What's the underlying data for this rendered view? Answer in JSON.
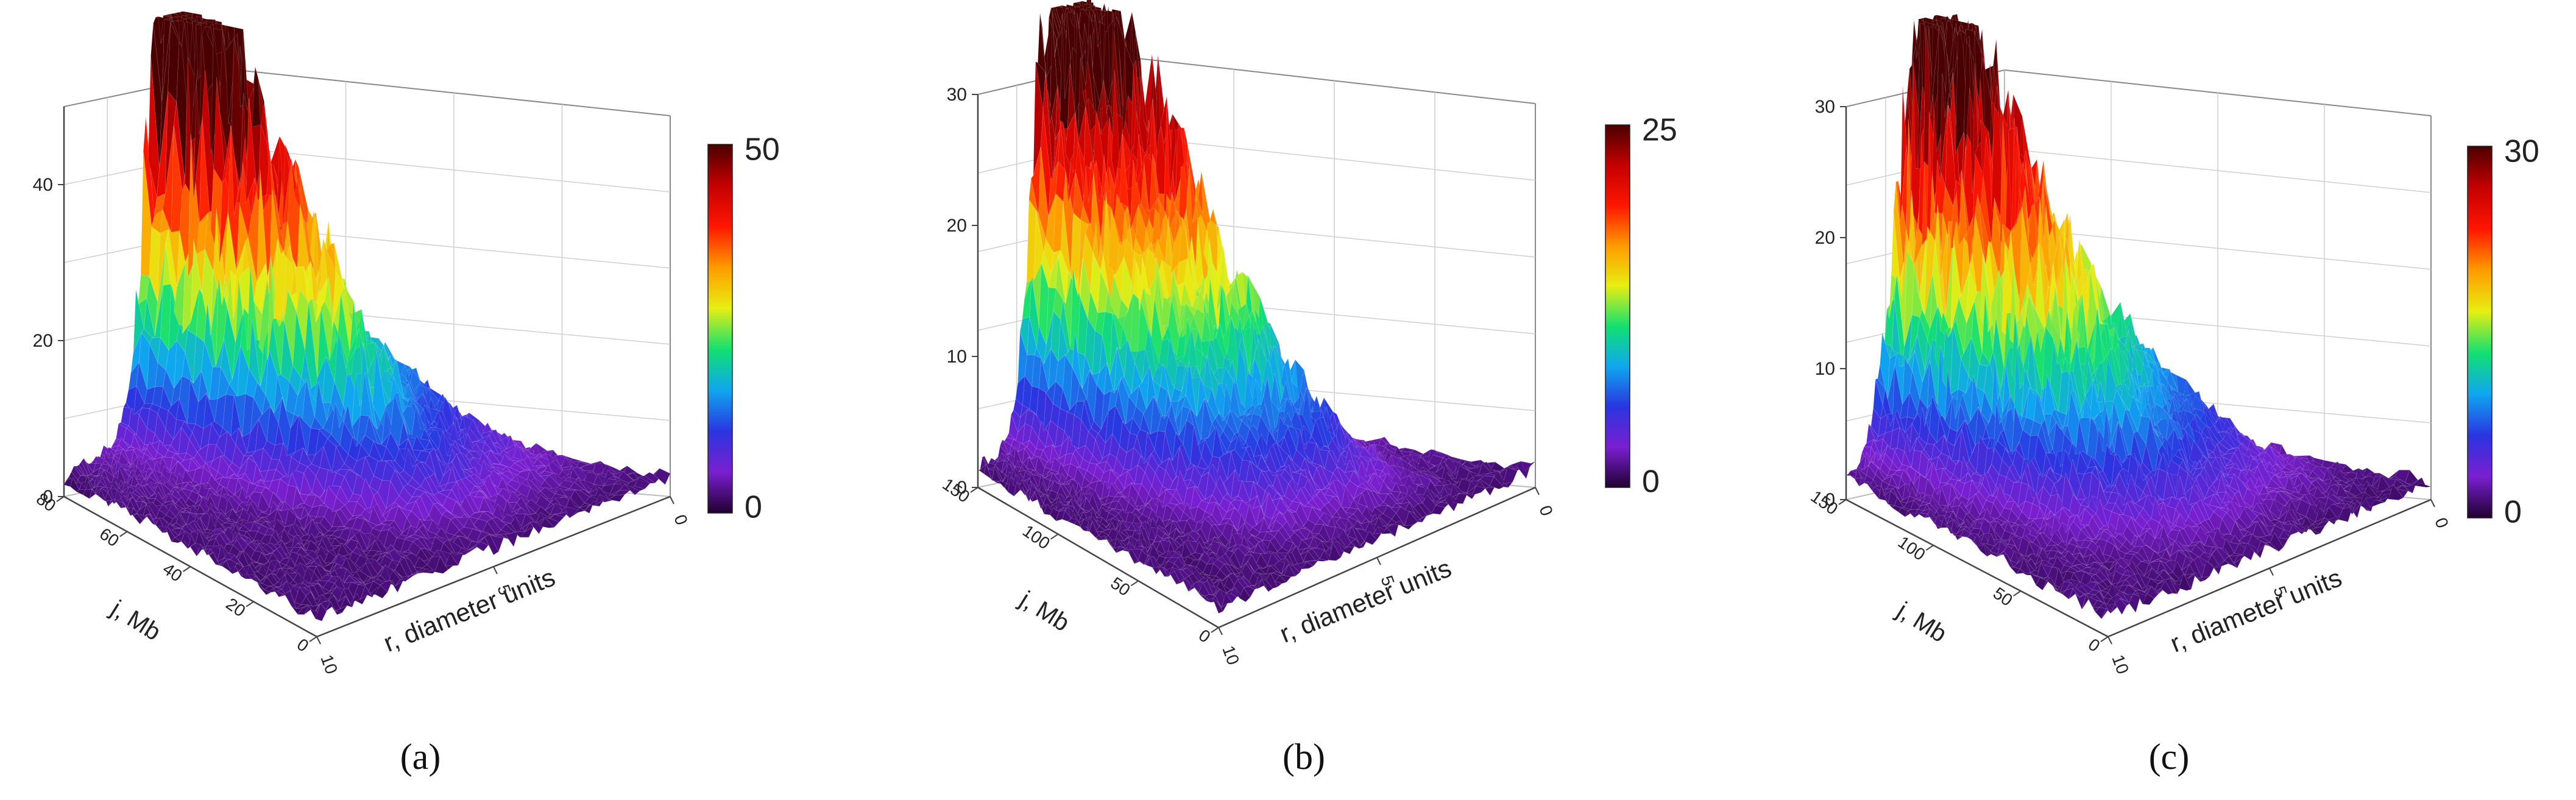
{
  "colors": {
    "background": "#ffffff",
    "axis": "#444444",
    "grid": "#cfcfcf",
    "colormap": [
      "#200030",
      "#7a1fd0",
      "#2a35e0",
      "#0fa6f0",
      "#12e070",
      "#e8ee12",
      "#ff9a00",
      "#ff1500",
      "#c40000",
      "#4a0000"
    ]
  },
  "chart_data": [
    {
      "type": "surface3d",
      "caption": "(a)",
      "caption_letter": "a",
      "zlim": [
        0,
        50
      ],
      "z_ticks": [
        "0",
        "20",
        "40"
      ],
      "y_label": "j, Mb",
      "y_ticks": [
        "80",
        "60",
        "40",
        "20",
        "0"
      ],
      "x_label": "r, diameter units",
      "x_ticks": [
        "10",
        "5",
        "0"
      ],
      "colorbar": {
        "min": 0,
        "max": 50,
        "min_label": "0",
        "max_label": "50"
      },
      "grid": true
    },
    {
      "type": "surface3d",
      "caption": "(b)",
      "caption_letter": "b",
      "zlim": [
        0,
        30
      ],
      "z_ticks": [
        "0",
        "10",
        "20",
        "30"
      ],
      "y_label": "j, Mb",
      "y_ticks": [
        "150",
        "100",
        "50",
        "0"
      ],
      "x_label": "r, diameter units",
      "x_ticks": [
        "10",
        "5",
        "0"
      ],
      "colorbar": {
        "min": 0,
        "max": 25,
        "min_label": "0",
        "max_label": "25"
      },
      "grid": true
    },
    {
      "type": "surface3d",
      "caption": "(c)",
      "caption_letter": "c",
      "zlim": [
        0,
        30
      ],
      "z_ticks": [
        "0",
        "10",
        "20",
        "30"
      ],
      "y_label": "j, Mb",
      "y_ticks": [
        "150",
        "100",
        "50",
        "0"
      ],
      "x_label": "r, diameter units",
      "x_ticks": [
        "10",
        "5",
        "0"
      ],
      "colorbar": {
        "min": 0,
        "max": 30,
        "min_label": "0",
        "max_label": "30"
      },
      "grid": true
    }
  ]
}
